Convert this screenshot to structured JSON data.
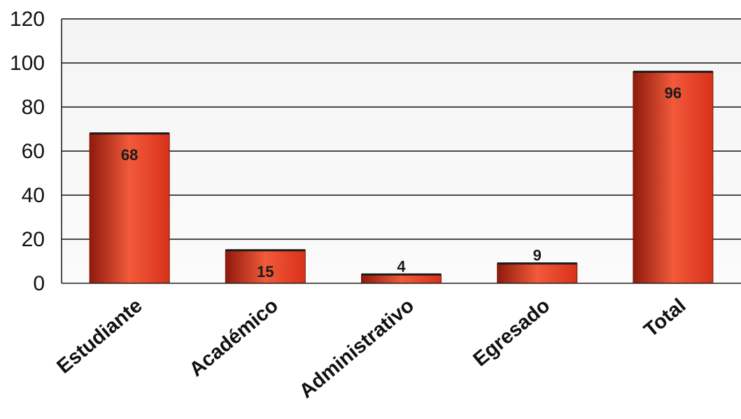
{
  "chart_data": {
    "type": "bar",
    "categories": [
      "Estudiante",
      "Académico",
      "Administrativo",
      "Egresado",
      "Total"
    ],
    "values": [
      68,
      15,
      4,
      9,
      96
    ],
    "data_labels": [
      "68",
      "15",
      "4",
      "9",
      "96"
    ],
    "title": "",
    "xlabel": "",
    "ylabel": "",
    "ylim": [
      0,
      120
    ],
    "yticks": [
      0,
      20,
      40,
      60,
      80,
      100,
      120
    ],
    "grid": true,
    "legend": "none",
    "bar_color": "#d8311a",
    "bar_highlight": "#f25a3a",
    "bar_shadow": "#8e1a0c"
  }
}
